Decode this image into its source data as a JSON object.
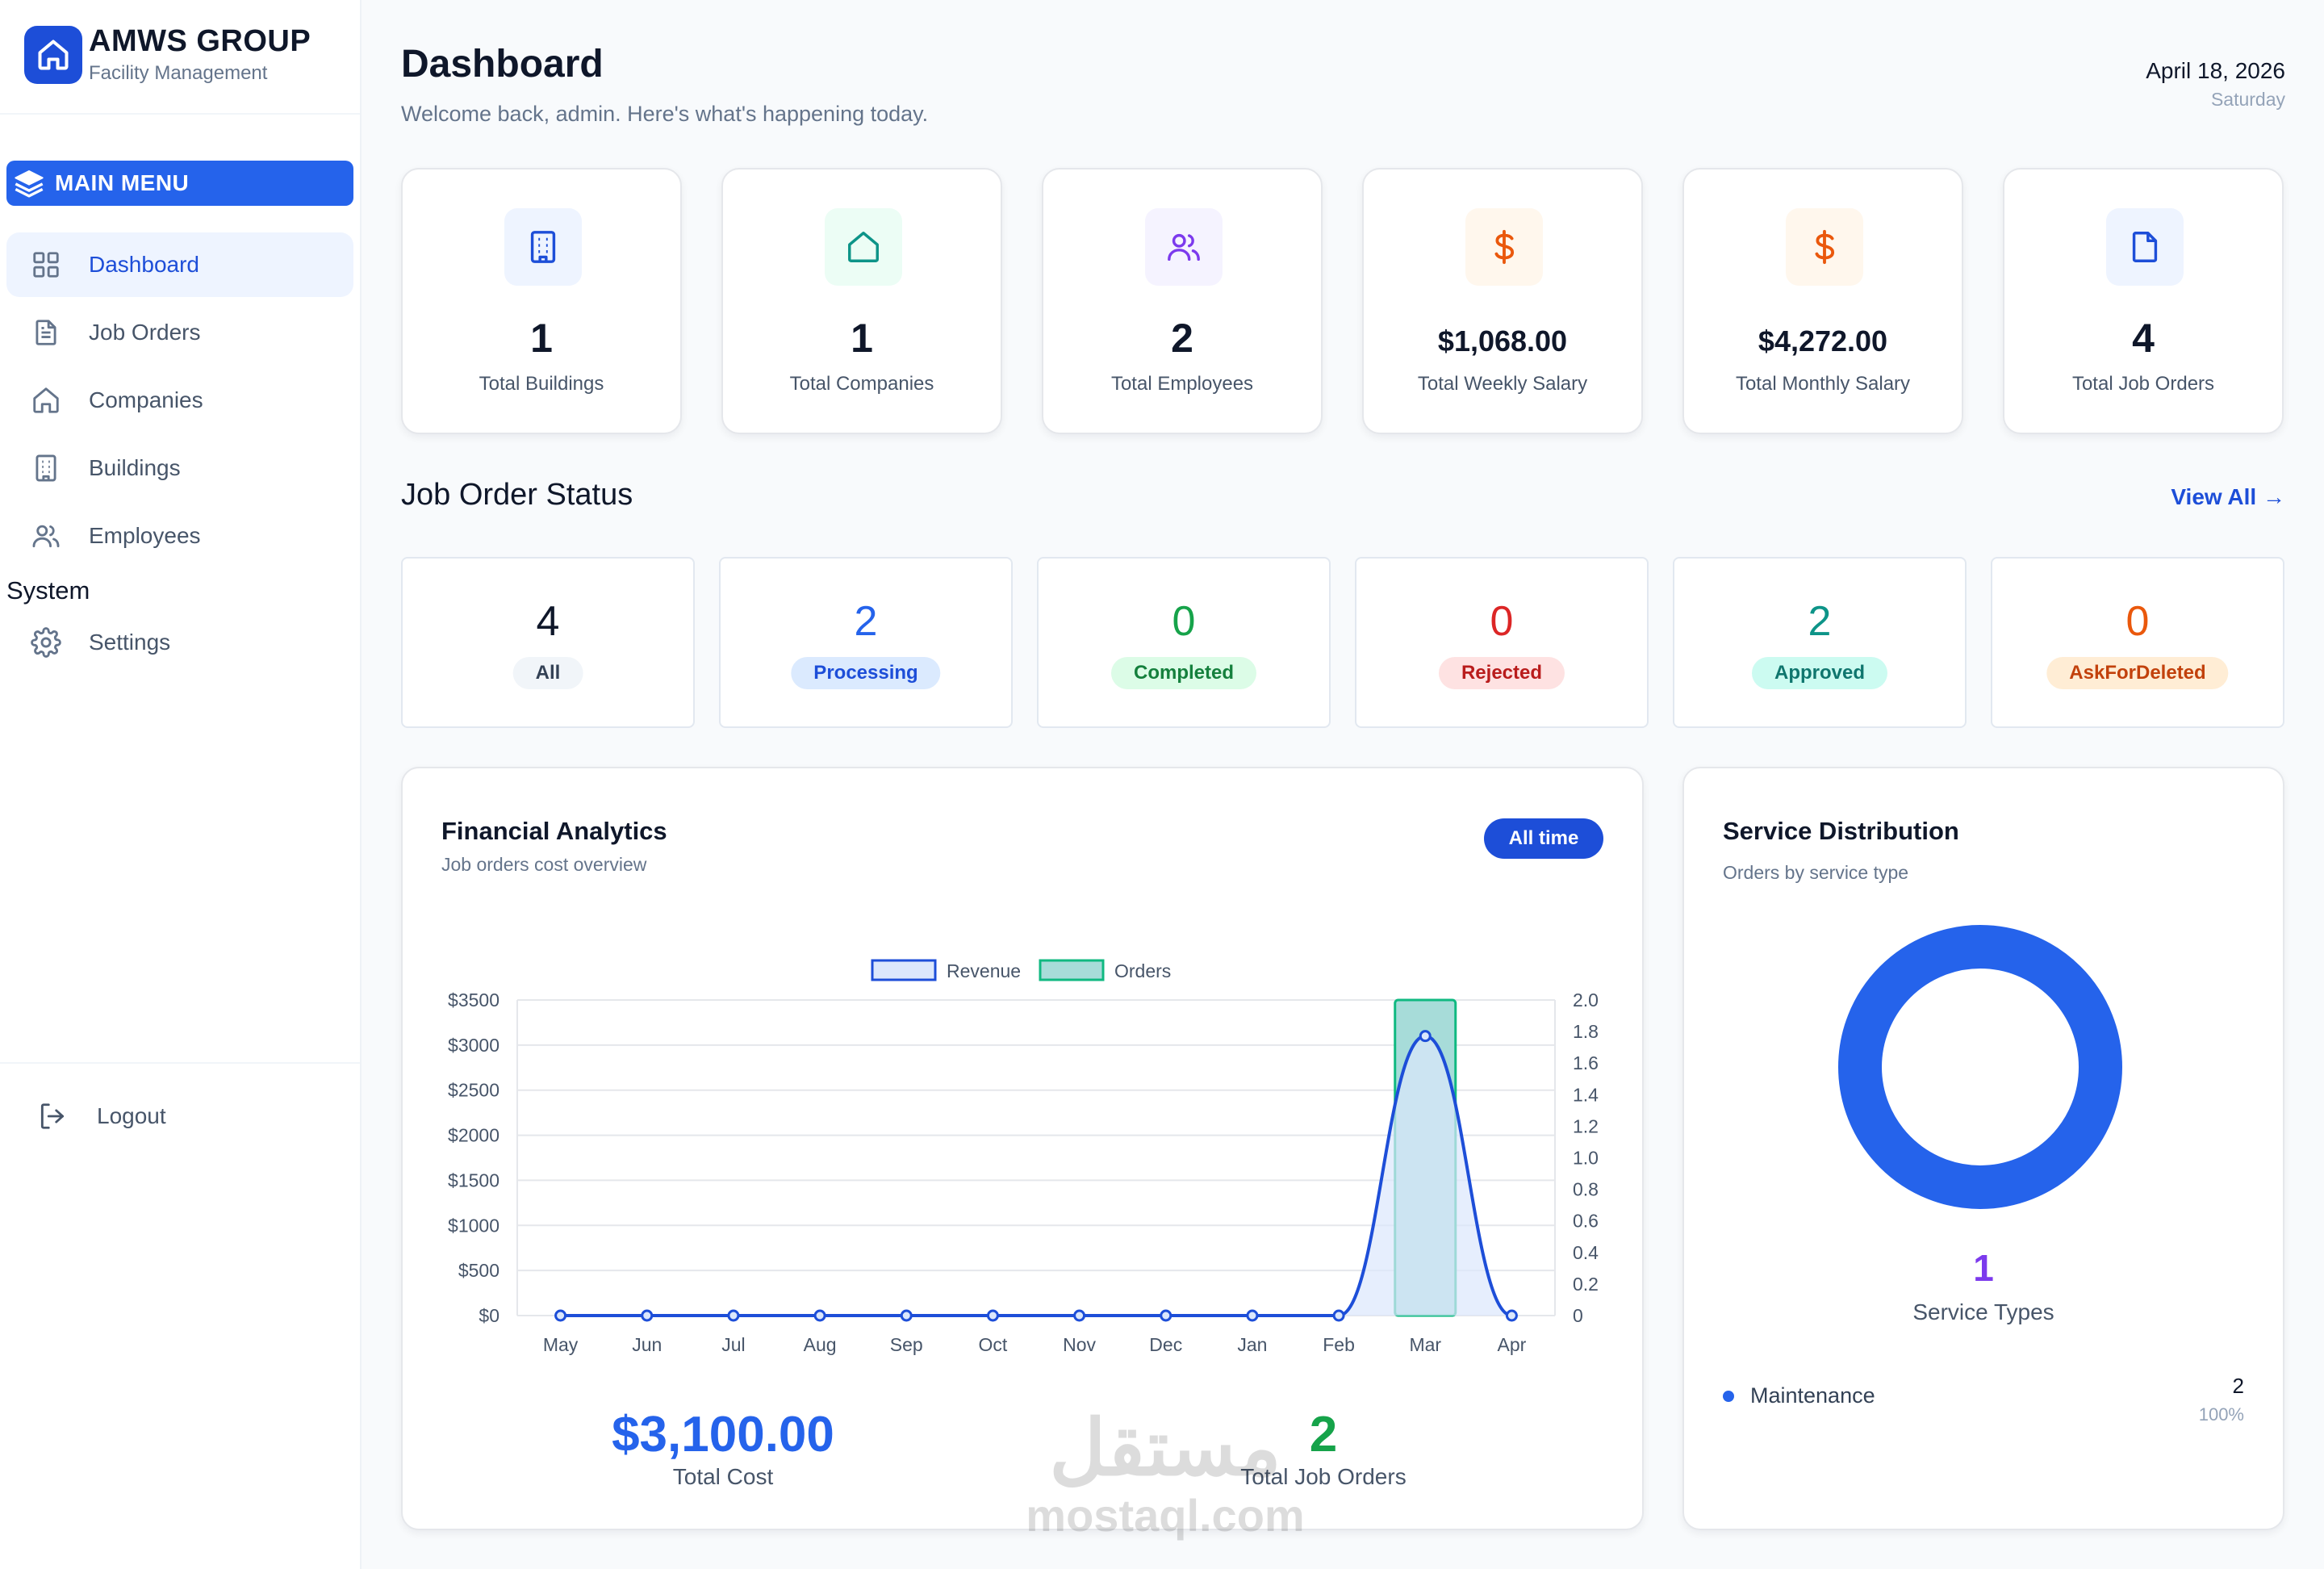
{
  "brand": {
    "title": "AMWS GROUP",
    "subtitle": "Facility Management"
  },
  "sidebar": {
    "main_menu_label": "MAIN MENU",
    "items": [
      {
        "label": "Dashboard",
        "icon": "grid-icon",
        "active": true
      },
      {
        "label": "Job Orders",
        "icon": "document-icon"
      },
      {
        "label": "Companies",
        "icon": "home-icon"
      },
      {
        "label": "Buildings",
        "icon": "building-icon"
      },
      {
        "label": "Employees",
        "icon": "users-icon"
      }
    ],
    "system_label": "System",
    "settings_label": "Settings",
    "logout_label": "Logout"
  },
  "header": {
    "title": "Dashboard",
    "subtitle": "Welcome back, admin. Here's what's happening today.",
    "date": "April 18, 2026",
    "day": "Saturday"
  },
  "stats": [
    {
      "value": "1",
      "label": "Total Buildings",
      "icon": "building-icon",
      "icon_color": "#1d4ed8",
      "icon_bg": "#eef4ff"
    },
    {
      "value": "1",
      "label": "Total Companies",
      "icon": "home-icon",
      "icon_color": "#0d9488",
      "icon_bg": "#ecfdf5"
    },
    {
      "value": "2",
      "label": "Total Employees",
      "icon": "users-icon",
      "icon_color": "#7c3aed",
      "icon_bg": "#f5f3ff"
    },
    {
      "value": "$1,068.00",
      "label": "Total Weekly Salary",
      "icon": "dollar-icon",
      "icon_color": "#ea580c",
      "icon_bg": "#fff7ed"
    },
    {
      "value": "$4,272.00",
      "label": "Total Monthly Salary",
      "icon": "dollar-icon",
      "icon_color": "#ea580c",
      "icon_bg": "#fff7ed"
    },
    {
      "value": "4",
      "label": "Total Job Orders",
      "icon": "document-icon",
      "icon_color": "#1d4ed8",
      "icon_bg": "#eef4ff"
    }
  ],
  "job_status": {
    "title": "Job Order Status",
    "view_all": "View All →",
    "items": [
      {
        "count": "4",
        "label": "All",
        "color": "#0f172a",
        "pill_bg": "#f1f5f9",
        "pill_color": "#334155"
      },
      {
        "count": "2",
        "label": "Processing",
        "color": "#2563eb",
        "pill_bg": "#dbeafe",
        "pill_color": "#1d4ed8"
      },
      {
        "count": "0",
        "label": "Completed",
        "color": "#16a34a",
        "pill_bg": "#dcfce7",
        "pill_color": "#15803d"
      },
      {
        "count": "0",
        "label": "Rejected",
        "color": "#dc2626",
        "pill_bg": "#fee2e2",
        "pill_color": "#b91c1c"
      },
      {
        "count": "2",
        "label": "Approved",
        "color": "#0d9488",
        "pill_bg": "#ccfbf1",
        "pill_color": "#0f766e"
      },
      {
        "count": "0",
        "label": "AskForDeleted",
        "color": "#ea580c",
        "pill_bg": "#ffedd5",
        "pill_color": "#c2410c"
      }
    ]
  },
  "financial": {
    "title": "Financial Analytics",
    "subtitle": "Job orders cost overview",
    "range_button": "All time",
    "total_cost": "$3,100.00",
    "total_cost_label": "Total Cost",
    "total_orders": "2",
    "total_orders_label": "Total Job Orders"
  },
  "chart_data": {
    "type": "bar",
    "categories": [
      "May",
      "Jun",
      "Jul",
      "Aug",
      "Sep",
      "Oct",
      "Nov",
      "Dec",
      "Jan",
      "Feb",
      "Mar",
      "Apr"
    ],
    "series": [
      {
        "name": "Revenue",
        "type": "area",
        "axis": "left",
        "values": [
          0,
          0,
          0,
          0,
          0,
          0,
          0,
          0,
          0,
          0,
          3100,
          0
        ],
        "color": "#1d4ed8",
        "fill": "#dbe7fc"
      },
      {
        "name": "Orders",
        "type": "bar",
        "axis": "right",
        "values": [
          0,
          0,
          0,
          0,
          0,
          0,
          0,
          0,
          0,
          0,
          2,
          0
        ],
        "color": "#10b981",
        "fill": "#a7dcd9"
      }
    ],
    "y_left": {
      "min": 0,
      "max": 3500,
      "ticks": [
        "$0",
        "$500",
        "$1000",
        "$1500",
        "$2000",
        "$2500",
        "$3000",
        "$3500"
      ]
    },
    "y_right": {
      "min": 0,
      "max": 2,
      "ticks": [
        "0",
        "0.2",
        "0.4",
        "0.6",
        "0.8",
        "1.0",
        "1.2",
        "1.4",
        "1.6",
        "1.8",
        "2.0"
      ]
    },
    "legend": "top-center",
    "grid": true
  },
  "service": {
    "title": "Service Distribution",
    "subtitle": "Orders by service type",
    "types_count": "1",
    "types_label": "Service Types",
    "items": [
      {
        "name": "Maintenance",
        "count": "2",
        "percent": "100%",
        "color": "#2563eb"
      }
    ]
  },
  "watermark": {
    "arabic": "مستقل",
    "latin": "mostaql.com"
  }
}
